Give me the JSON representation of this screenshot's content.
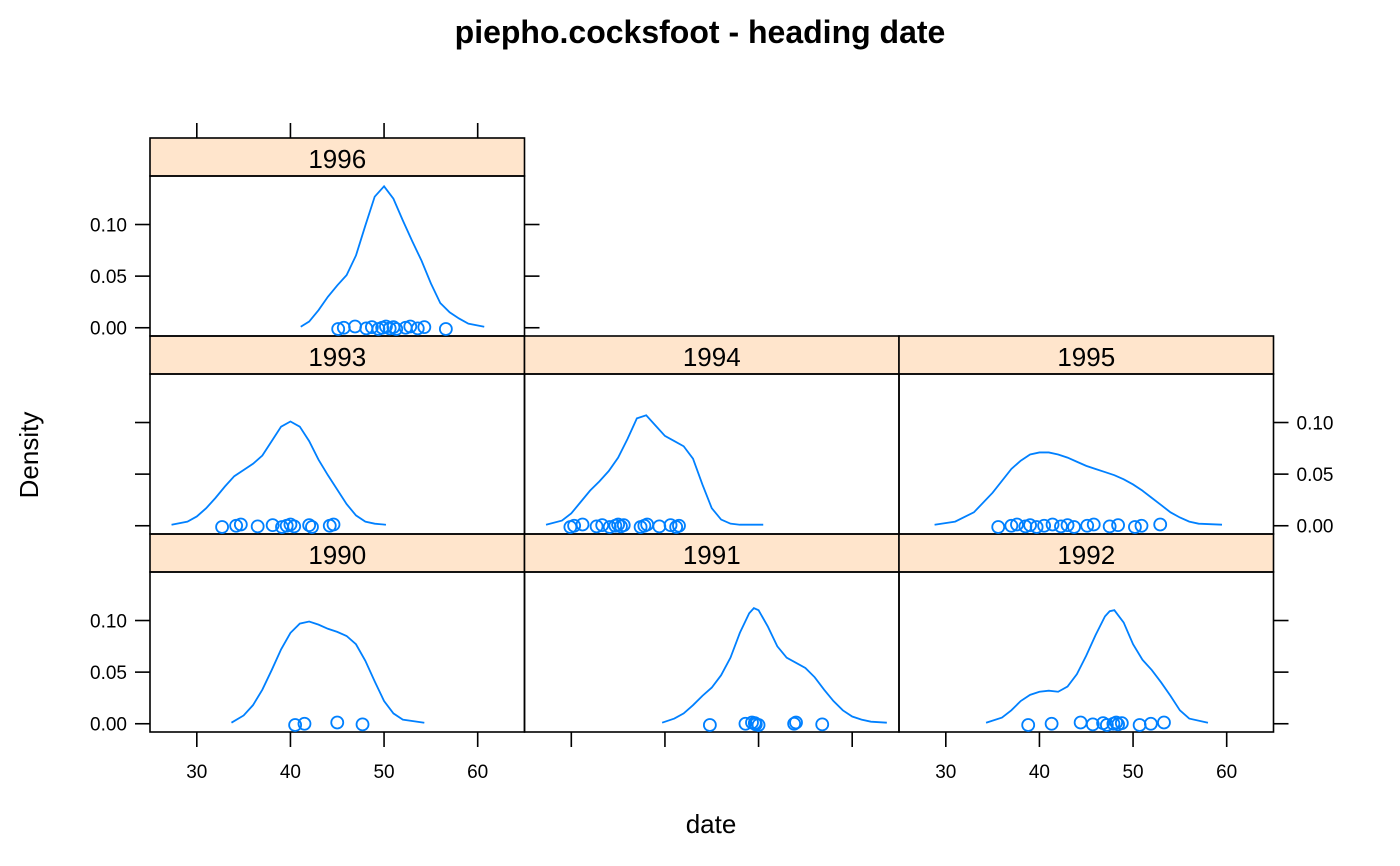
{
  "chart_data": {
    "type": "line",
    "title": "piepho.cocksfoot - heading date",
    "xlabel": "date",
    "ylabel": "Density",
    "xlim": [
      25,
      65
    ],
    "ylim": [
      -0.008,
      0.147
    ],
    "x_ticks": [
      30,
      40,
      50,
      60
    ],
    "x_tick_labels": [
      "30",
      "40",
      "50",
      "60"
    ],
    "y_ticks": [
      0.0,
      0.05,
      0.1
    ],
    "y_tick_labels": [
      "0.00",
      "0.05",
      "0.10"
    ],
    "grid": false,
    "layout": {
      "columns": 3,
      "rows": 3
    },
    "panels": [
      {
        "strip": "1990",
        "row": 0,
        "col": 0,
        "density": {
          "x": [
            33.7,
            35,
            36,
            37,
            38,
            39,
            40,
            41,
            42,
            43,
            44,
            45,
            46,
            47,
            48,
            49,
            50,
            51,
            52,
            54.3
          ],
          "y": [
            0.001,
            0.008,
            0.018,
            0.033,
            0.052,
            0.072,
            0.088,
            0.097,
            0.099,
            0.096,
            0.092,
            0.089,
            0.085,
            0.077,
            0.061,
            0.041,
            0.022,
            0.01,
            0.004,
            0.001
          ]
        },
        "points": [
          40.5,
          41.5,
          45.0,
          47.7
        ]
      },
      {
        "strip": "1991",
        "row": 0,
        "col": 1,
        "density": {
          "x": [
            39.7,
            41,
            42,
            43,
            44,
            45,
            46,
            47,
            48,
            49,
            49.5,
            50,
            51,
            52,
            53,
            54,
            55,
            56,
            57,
            58,
            59,
            60,
            61,
            62,
            63.7
          ],
          "y": [
            0.001,
            0.005,
            0.01,
            0.018,
            0.027,
            0.035,
            0.047,
            0.064,
            0.088,
            0.107,
            0.112,
            0.11,
            0.094,
            0.075,
            0.064,
            0.059,
            0.054,
            0.045,
            0.033,
            0.022,
            0.013,
            0.007,
            0.004,
            0.002,
            0.001
          ]
        },
        "points": [
          44.8,
          48.6,
          49.3,
          49.7,
          49.6,
          50.0,
          53.8,
          54.0,
          56.8
        ]
      },
      {
        "strip": "1992",
        "row": 0,
        "col": 2,
        "density": {
          "x": [
            34.3,
            36,
            37,
            38,
            39,
            40,
            41,
            42,
            43,
            44,
            45,
            46,
            47,
            47.5,
            48,
            49,
            50,
            51,
            52,
            53,
            54,
            55,
            56,
            58
          ],
          "y": [
            0.001,
            0.006,
            0.013,
            0.022,
            0.028,
            0.031,
            0.032,
            0.031,
            0.036,
            0.048,
            0.066,
            0.086,
            0.104,
            0.109,
            0.11,
            0.098,
            0.077,
            0.062,
            0.052,
            0.04,
            0.027,
            0.013,
            0.005,
            0.001
          ]
        },
        "points": [
          38.8,
          41.3,
          44.4,
          45.7,
          46.8,
          47.2,
          47.9,
          48.2,
          48.4,
          48.8,
          50.7,
          51.9,
          53.3
        ]
      },
      {
        "strip": "1993",
        "row": 1,
        "col": 0,
        "density": {
          "x": [
            27.3,
            29,
            30,
            31,
            32,
            33,
            34,
            35,
            36,
            37,
            38,
            39,
            40,
            41,
            42,
            43,
            44,
            45,
            46,
            47,
            48,
            49,
            50.2
          ],
          "y": [
            0.001,
            0.004,
            0.009,
            0.017,
            0.027,
            0.038,
            0.048,
            0.054,
            0.06,
            0.068,
            0.082,
            0.096,
            0.101,
            0.096,
            0.082,
            0.064,
            0.049,
            0.035,
            0.021,
            0.01,
            0.004,
            0.002,
            0.001
          ]
        },
        "points": [
          32.7,
          34.2,
          34.7,
          36.5,
          38.1,
          39.1,
          39.6,
          40.0,
          40.4,
          42.0,
          42.3,
          44.2,
          44.6
        ]
      },
      {
        "strip": "1994",
        "row": 1,
        "col": 1,
        "density": {
          "x": [
            27.3,
            29,
            30,
            31,
            32,
            33,
            34,
            35,
            36,
            37,
            38,
            39,
            40,
            41,
            42,
            43,
            44,
            45,
            46,
            47,
            48,
            49,
            50.5
          ],
          "y": [
            0.001,
            0.005,
            0.012,
            0.023,
            0.034,
            0.043,
            0.053,
            0.066,
            0.084,
            0.104,
            0.107,
            0.097,
            0.087,
            0.082,
            0.077,
            0.065,
            0.04,
            0.017,
            0.006,
            0.002,
            0.001,
            0.001,
            0.001
          ]
        },
        "points": [
          29.9,
          30.3,
          31.2,
          32.7,
          33.3,
          34.1,
          34.7,
          35.0,
          35.3,
          35.6,
          37.4,
          37.8,
          38.1,
          39.4,
          40.6,
          41.2,
          41.5
        ]
      },
      {
        "strip": "1995",
        "row": 1,
        "col": 2,
        "density": {
          "x": [
            28.8,
            31,
            33,
            35,
            37,
            38,
            39,
            40,
            41,
            42,
            43,
            44,
            45,
            46,
            47,
            48,
            49,
            50,
            51,
            52,
            53,
            54,
            55,
            56,
            57,
            59.5
          ],
          "y": [
            0.001,
            0.004,
            0.013,
            0.032,
            0.055,
            0.063,
            0.069,
            0.071,
            0.071,
            0.069,
            0.066,
            0.062,
            0.058,
            0.055,
            0.052,
            0.049,
            0.045,
            0.04,
            0.034,
            0.027,
            0.02,
            0.013,
            0.008,
            0.004,
            0.002,
            0.001
          ]
        },
        "points": [
          35.6,
          37.0,
          37.6,
          38.5,
          39.0,
          39.7,
          40.5,
          41.4,
          42.3,
          43.0,
          43.7,
          45.1,
          45.8,
          47.5,
          48.4,
          50.2,
          50.9,
          52.9
        ]
      },
      {
        "strip": "1996",
        "row": 2,
        "col": 0,
        "density": {
          "x": [
            41.1,
            42,
            43,
            44,
            45,
            46,
            47,
            48,
            49,
            50,
            51,
            52,
            53,
            54,
            55,
            56,
            57,
            58,
            59,
            60.7
          ],
          "y": [
            0.001,
            0.006,
            0.017,
            0.03,
            0.041,
            0.051,
            0.07,
            0.099,
            0.127,
            0.137,
            0.125,
            0.104,
            0.084,
            0.065,
            0.043,
            0.024,
            0.015,
            0.009,
            0.004,
            0.001
          ]
        },
        "points": [
          45.1,
          45.7,
          46.9,
          48.1,
          48.7,
          49.4,
          49.8,
          50.2,
          50.6,
          51.0,
          51.3,
          52.3,
          52.8,
          53.6,
          54.3,
          56.6
        ]
      }
    ]
  }
}
